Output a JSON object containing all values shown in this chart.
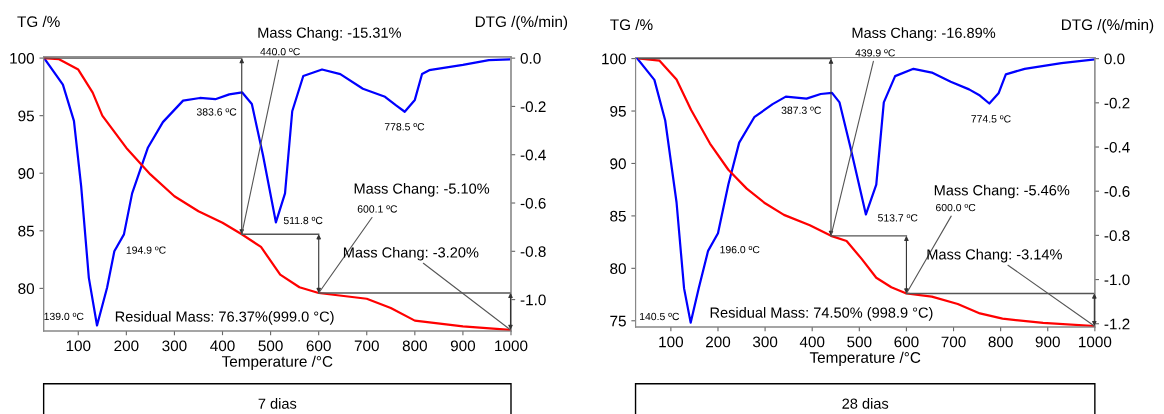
{
  "chart_data": [
    {
      "type": "line",
      "xlabel": "Temperature /°C",
      "ylabel": "TG /%",
      "y2label": "DTG /(%/min)",
      "xlim": [
        28,
        1000
      ],
      "xticks": [
        100,
        200,
        300,
        400,
        500,
        600,
        700,
        800,
        900,
        1000
      ],
      "ylim": [
        76.3,
        100.1
      ],
      "yticks": [
        80,
        85,
        90,
        95,
        100
      ],
      "y2lim": [
        -1.13,
        0.005
      ],
      "y2ticks": [
        {
          "value": -1.0,
          "label": "-1.0"
        },
        {
          "value": -0.8,
          "label": "-0.8"
        },
        {
          "value": -0.6,
          "label": "-0.6"
        },
        {
          "value": -0.4,
          "label": "-0.4"
        },
        {
          "value": -0.2,
          "label": "-0.2"
        },
        {
          "value": 0.0,
          "label": "0.0"
        }
      ],
      "grid": false,
      "series": [
        {
          "color": "#ff0000",
          "x": [
            28,
            60,
            100,
            130,
            150,
            200,
            250,
            300,
            350,
            400,
            440,
            480,
            520,
            560,
            600,
            700,
            750,
            800,
            900,
            1000
          ],
          "values": [
            100,
            99.9,
            99,
            97,
            95,
            92.2,
            89.9,
            88,
            86.7,
            85.7,
            84.7,
            83.6,
            81.2,
            80.1,
            79.6,
            79.1,
            78.3,
            77.2,
            76.7,
            76.4
          ]
        },
        {
          "axis": "y2",
          "color": "#0000ff",
          "x": [
            29,
            68,
            91,
            106,
            122,
            139,
            160,
            175,
            195,
            212,
            245,
            276,
            318,
            353,
            385,
            414,
            441,
            461,
            484,
            511,
            530,
            545,
            568,
            607,
            645,
            692,
            738,
            761,
            779,
            800,
            815,
            830,
            900,
            954,
            996
          ],
          "values": [
            0.0,
            -0.11,
            -0.26,
            -0.53,
            -0.91,
            -1.107,
            -0.95,
            -0.8,
            -0.73,
            -0.56,
            -0.37,
            -0.265,
            -0.176,
            -0.165,
            -0.17,
            -0.15,
            -0.142,
            -0.19,
            -0.4,
            -0.68,
            -0.56,
            -0.22,
            -0.074,
            -0.047,
            -0.066,
            -0.127,
            -0.16,
            -0.196,
            -0.222,
            -0.173,
            -0.066,
            -0.05,
            -0.028,
            -0.008,
            -0.005
          ]
        }
      ],
      "annotations": [
        "Mass Chang: -15.31%",
        {
          "text": "440.0 ºC",
          "x": 440,
          "y": 84.7
        },
        "Mass Chang: -5.10%",
        {
          "text": "600.1 ºC",
          "x": 600.1,
          "y": 79.6
        },
        {
          "text": "Mass Chang: -3.20%",
          "x": 999,
          "y": 76.4
        },
        "Residual Mass: 76.37%(999.0 °C)",
        {
          "text": "139.0 ºC",
          "x": 139.0,
          "y": 76.7
        },
        {
          "text": "194.9 ºC",
          "x": 194.9,
          "y": 84.6
        },
        {
          "text": "383.6 ºC",
          "x": 383.6,
          "y": 96.4
        },
        {
          "text": "511.8 ºC",
          "x": 511.8,
          "y": 85.7
        },
        {
          "text": "778.5 ºC",
          "x": 778.5,
          "y": 95.3
        },
        "7 dias"
      ]
    },
    {
      "type": "line",
      "xlabel": "Temperature /°C",
      "ylabel": "TG /%",
      "y2label": "DTG /(%/min)",
      "xlim": [
        25,
        1000
      ],
      "xticks": [
        100,
        200,
        300,
        400,
        500,
        600,
        700,
        800,
        900,
        1000
      ],
      "ylim": [
        74.4,
        100.1
      ],
      "yticks": [
        75,
        80,
        85,
        90,
        95,
        100
      ],
      "y2lim": [
        -1.215,
        0.005
      ],
      "y2ticks": [
        {
          "value": -1.2,
          "label": "-1.2"
        },
        {
          "value": -1.0,
          "label": "-1.0"
        },
        {
          "value": -0.8,
          "label": "-0.8"
        },
        {
          "value": -0.6,
          "label": "-0.6"
        },
        {
          "value": -0.4,
          "label": "-0.4"
        },
        {
          "value": -0.2,
          "label": "-0.2"
        },
        {
          "value": 0.0,
          "label": "0.0"
        }
      ],
      "grid": false,
      "series": [
        {
          "color": "#ff0000",
          "x": [
            33,
            76,
            112,
            143,
            183,
            222,
            261,
            300,
            340,
            395,
            440,
            473,
            505,
            536,
            568,
            600,
            654,
            709,
            756,
            804,
            890,
            1000
          ],
          "values": [
            100,
            99.8,
            98,
            95.1,
            91.9,
            89.4,
            87.6,
            86.2,
            85.1,
            84.1,
            83.1,
            82.6,
            80.9,
            79.1,
            78.2,
            77.6,
            77.3,
            76.6,
            75.7,
            75.2,
            74.8,
            74.5
          ]
        },
        {
          "axis": "y2",
          "color": "#0000ff",
          "x": [
            29,
            65,
            88,
            112,
            128,
            142,
            159,
            179,
            200,
            222,
            245,
            277,
            316,
            344,
            388,
            418,
            442,
            458,
            481,
            514,
            536,
            552,
            576,
            615,
            654,
            694,
            733,
            756,
            776,
            796,
            811,
            851,
            929,
            1000
          ],
          "values": [
            0.0,
            -0.096,
            -0.28,
            -0.65,
            -1.04,
            -1.195,
            -1.04,
            -0.87,
            -0.79,
            -0.57,
            -0.38,
            -0.265,
            -0.206,
            -0.172,
            -0.181,
            -0.16,
            -0.155,
            -0.198,
            -0.4,
            -0.705,
            -0.57,
            -0.198,
            -0.079,
            -0.046,
            -0.063,
            -0.105,
            -0.139,
            -0.167,
            -0.203,
            -0.155,
            -0.071,
            -0.046,
            -0.02,
            -0.003
          ]
        }
      ],
      "annotations": [
        "Mass Chang: -16.89%",
        {
          "text": "439.9 ºC",
          "x": 439.9,
          "y": 83.1
        },
        "Mass Chang: -5.46%",
        {
          "text": "600.0 ºC",
          "x": 600.0,
          "y": 77.6
        },
        {
          "text": "Mass Chang: -3.14%",
          "x": 998.9,
          "y": 74.5
        },
        "Residual Mass: 74.50% (998.9 °C)",
        {
          "text": "140.5 ºC",
          "x": 140.5,
          "y": 74.8
        },
        {
          "text": "196.0 ºC",
          "x": 196.0,
          "y": 83.4
        },
        {
          "text": "387.3 ºC",
          "x": 387.3,
          "y": 96.2
        },
        {
          "text": "513.7 ºC",
          "x": 513.7,
          "y": 85.2
        },
        {
          "text": "774.5 ºC",
          "x": 774.5,
          "y": 95.7
        },
        "28 dias"
      ]
    }
  ]
}
